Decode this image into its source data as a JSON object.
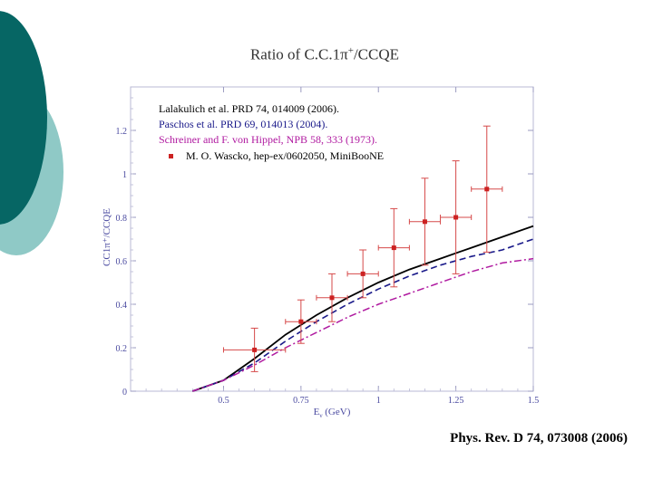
{
  "slide": {
    "citation": "Phys. Rev. D 74, 073008 (2006)"
  },
  "colors": {
    "teal_dark": "#066664",
    "teal_light": "#8fc9c6",
    "data_red": "#cc2222",
    "errbar_red": "#d64a4a",
    "legend_navy": "#1a1a8a",
    "legend_purple": "#b01aa0",
    "axis_blue": "#4a4aa0"
  },
  "chart_data": {
    "type": "scatter",
    "title_main": "Ratio of  C.C.1π",
    "title_sup": "+",
    "title_tail": "/CCQE",
    "xlabel_main": "E",
    "xlabel_sub": "ν",
    "xlabel_tail": " (GeV)",
    "ylabel": "CC1π⁺/CCQE",
    "xlim": [
      0.2,
      1.5
    ],
    "ylim": [
      0,
      1.4
    ],
    "x_ticks": [
      0.5,
      0.75,
      1,
      1.25,
      1.5
    ],
    "x_tick_labels": [
      "0.5",
      "0.75",
      "1",
      "1.25",
      "1.5"
    ],
    "y_ticks": [
      0,
      0.2,
      0.4,
      0.6,
      0.8,
      1.0,
      1.2
    ],
    "y_tick_labels": [
      "0",
      "0.2",
      "0.4",
      "0.6",
      "0.8",
      "1",
      "1.2"
    ],
    "legend": [
      {
        "name": "Lalakulich et al. PRD 74, 014009 (2006).",
        "style": "solid",
        "color": "#000000"
      },
      {
        "name": "Paschos et al. PRD 69, 014013 (2004).",
        "style": "dashed",
        "color": "#1a1a8a"
      },
      {
        "name": "Schreiner and F. von Hippel, NPB 58, 333 (1973).",
        "style": "dashdot",
        "color": "#b01aa0"
      },
      {
        "name": "M. O. Wascko, hep-ex/0602050, MiniBooNE",
        "style": "marker",
        "color": "#cc2222"
      }
    ],
    "series": [
      {
        "name": "MiniBooNE data",
        "x": [
          0.6,
          0.75,
          0.85,
          0.95,
          1.05,
          1.15,
          1.25,
          1.35
        ],
        "y": [
          0.19,
          0.32,
          0.43,
          0.54,
          0.66,
          0.78,
          0.8,
          0.93
        ],
        "xerr": [
          0.1,
          0.05,
          0.05,
          0.05,
          0.05,
          0.05,
          0.05,
          0.05
        ],
        "yerr": [
          0.1,
          0.1,
          0.11,
          0.11,
          0.18,
          0.2,
          0.26,
          0.29
        ]
      },
      {
        "name": "Lalakulich (solid)",
        "x": [
          0.4,
          0.5,
          0.6,
          0.7,
          0.8,
          0.9,
          1.0,
          1.1,
          1.2,
          1.3,
          1.4,
          1.5
        ],
        "y": [
          0.0,
          0.05,
          0.15,
          0.26,
          0.35,
          0.43,
          0.5,
          0.56,
          0.61,
          0.66,
          0.71,
          0.76
        ]
      },
      {
        "name": "Paschos (dashed)",
        "x": [
          0.4,
          0.5,
          0.6,
          0.7,
          0.8,
          0.9,
          1.0,
          1.1,
          1.2,
          1.3,
          1.4,
          1.5
        ],
        "y": [
          0.0,
          0.05,
          0.13,
          0.23,
          0.32,
          0.4,
          0.47,
          0.53,
          0.58,
          0.62,
          0.65,
          0.7
        ]
      },
      {
        "name": "Schreiner (dash-dot)",
        "x": [
          0.4,
          0.5,
          0.6,
          0.7,
          0.8,
          0.9,
          1.0,
          1.1,
          1.2,
          1.3,
          1.4,
          1.5
        ],
        "y": [
          0.0,
          0.05,
          0.12,
          0.2,
          0.27,
          0.34,
          0.4,
          0.45,
          0.5,
          0.55,
          0.59,
          0.61
        ]
      }
    ]
  }
}
